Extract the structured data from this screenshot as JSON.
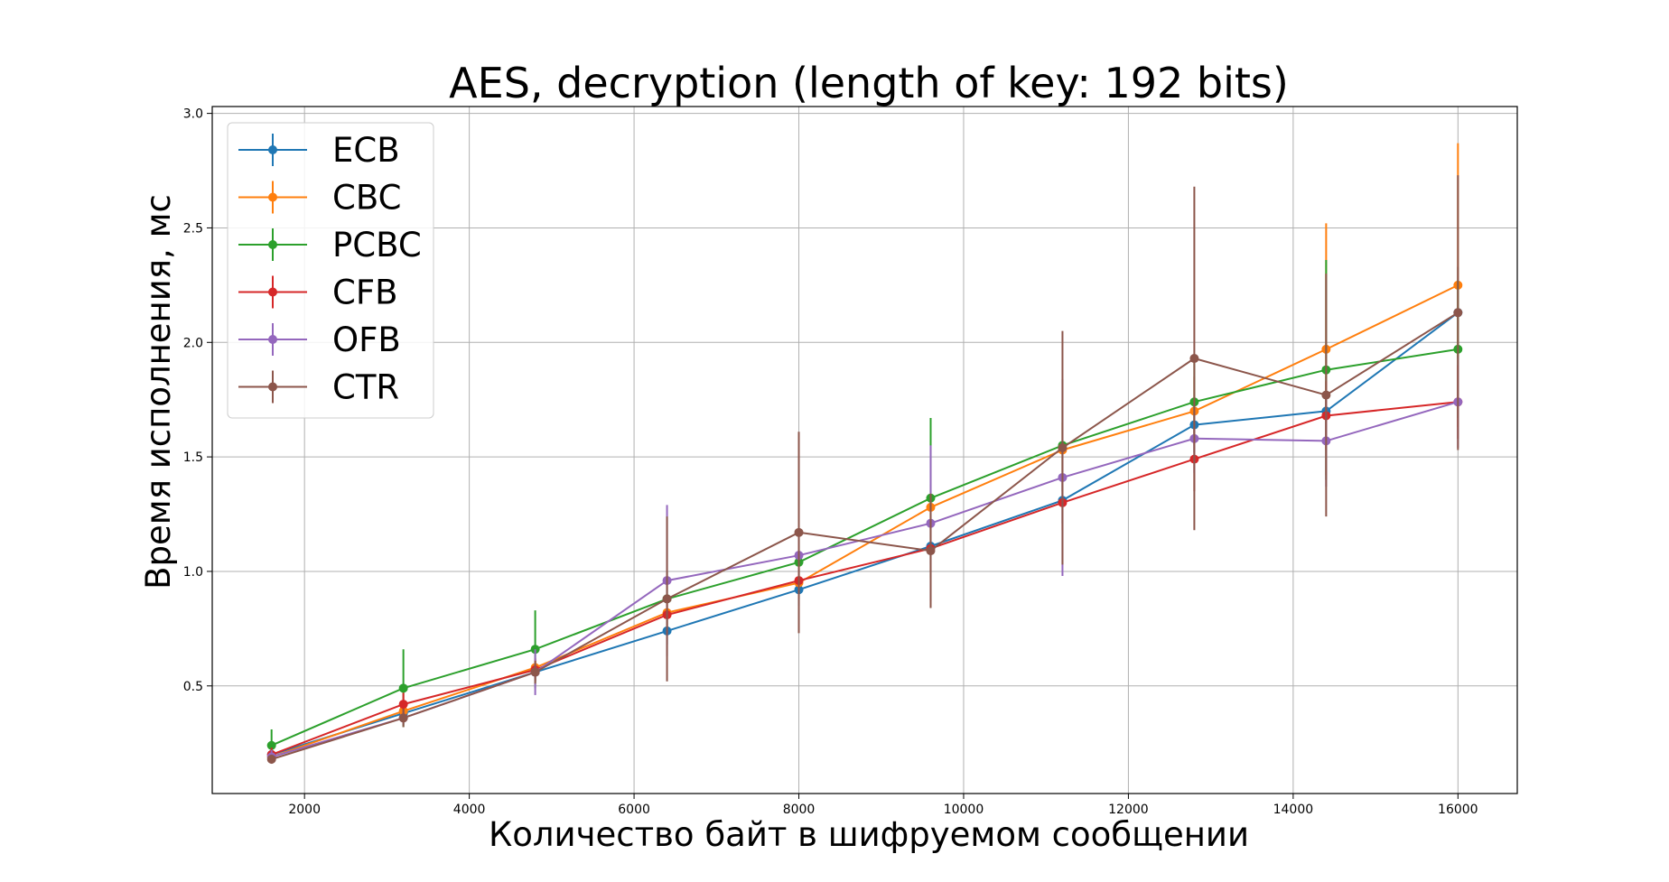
{
  "chart_data": {
    "type": "line",
    "title": "AES, decryption (length of key: 192 bits)",
    "xlabel": "Количество байт в шифруемом сообщении",
    "ylabel": "Время исполнения, мс",
    "x": [
      1600,
      3200,
      4800,
      6400,
      8000,
      9600,
      11200,
      12800,
      14400,
      16000
    ],
    "xlim": [
      880,
      16720
    ],
    "ylim": [
      0.03,
      3.03
    ],
    "xticks": [
      2000,
      4000,
      6000,
      8000,
      10000,
      12000,
      14000,
      16000
    ],
    "yticks": [
      0.5,
      1.0,
      1.5,
      2.0,
      2.5,
      3.0
    ],
    "xtick_labels": [
      "2000",
      "4000",
      "6000",
      "8000",
      "10000",
      "12000",
      "14000",
      "16000"
    ],
    "ytick_labels": [
      "0.5",
      "1.0",
      "1.5",
      "2.0",
      "2.5",
      "3.0"
    ],
    "grid": true,
    "legend_position": "top-left",
    "series": [
      {
        "name": "ECB",
        "color": "#1f77b4",
        "values": [
          0.2,
          0.38,
          0.56,
          0.74,
          0.92,
          1.11,
          1.31,
          1.64,
          1.7,
          2.13
        ],
        "errors": [
          0.02,
          0.03,
          0.04,
          0.06,
          0.07,
          0.08,
          0.1,
          0.12,
          0.15,
          0.2
        ]
      },
      {
        "name": "CBC",
        "color": "#ff7f0e",
        "values": [
          0.19,
          0.39,
          0.58,
          0.82,
          0.95,
          1.28,
          1.53,
          1.7,
          1.97,
          2.25
        ],
        "errors": [
          0.02,
          0.03,
          0.04,
          0.07,
          0.07,
          0.1,
          0.12,
          0.15,
          0.55,
          0.62
        ]
      },
      {
        "name": "PCBC",
        "color": "#2ca02c",
        "values": [
          0.24,
          0.49,
          0.66,
          0.88,
          1.04,
          1.32,
          1.55,
          1.74,
          1.88,
          1.97
        ],
        "errors": [
          0.07,
          0.17,
          0.17,
          0.12,
          0.1,
          0.35,
          0.2,
          0.18,
          0.48,
          0.3
        ]
      },
      {
        "name": "CFB",
        "color": "#d62728",
        "values": [
          0.2,
          0.42,
          0.57,
          0.81,
          0.96,
          1.1,
          1.3,
          1.49,
          1.68,
          1.74
        ],
        "errors": [
          0.03,
          0.05,
          0.05,
          0.08,
          0.08,
          0.1,
          0.12,
          0.14,
          0.15,
          0.16
        ]
      },
      {
        "name": "OFB",
        "color": "#9467bd",
        "values": [
          0.19,
          0.36,
          0.56,
          0.96,
          1.07,
          1.21,
          1.41,
          1.58,
          1.57,
          1.74
        ],
        "errors": [
          0.03,
          0.03,
          0.1,
          0.33,
          0.08,
          0.34,
          0.43,
          0.15,
          0.2,
          0.2
        ]
      },
      {
        "name": "CTR",
        "color": "#8c564b",
        "values": [
          0.18,
          0.36,
          0.56,
          0.88,
          1.17,
          1.09,
          1.54,
          1.93,
          1.77,
          2.13
        ],
        "errors": [
          0.02,
          0.04,
          0.05,
          0.36,
          0.44,
          0.25,
          0.51,
          0.75,
          0.53,
          0.6
        ]
      }
    ]
  }
}
